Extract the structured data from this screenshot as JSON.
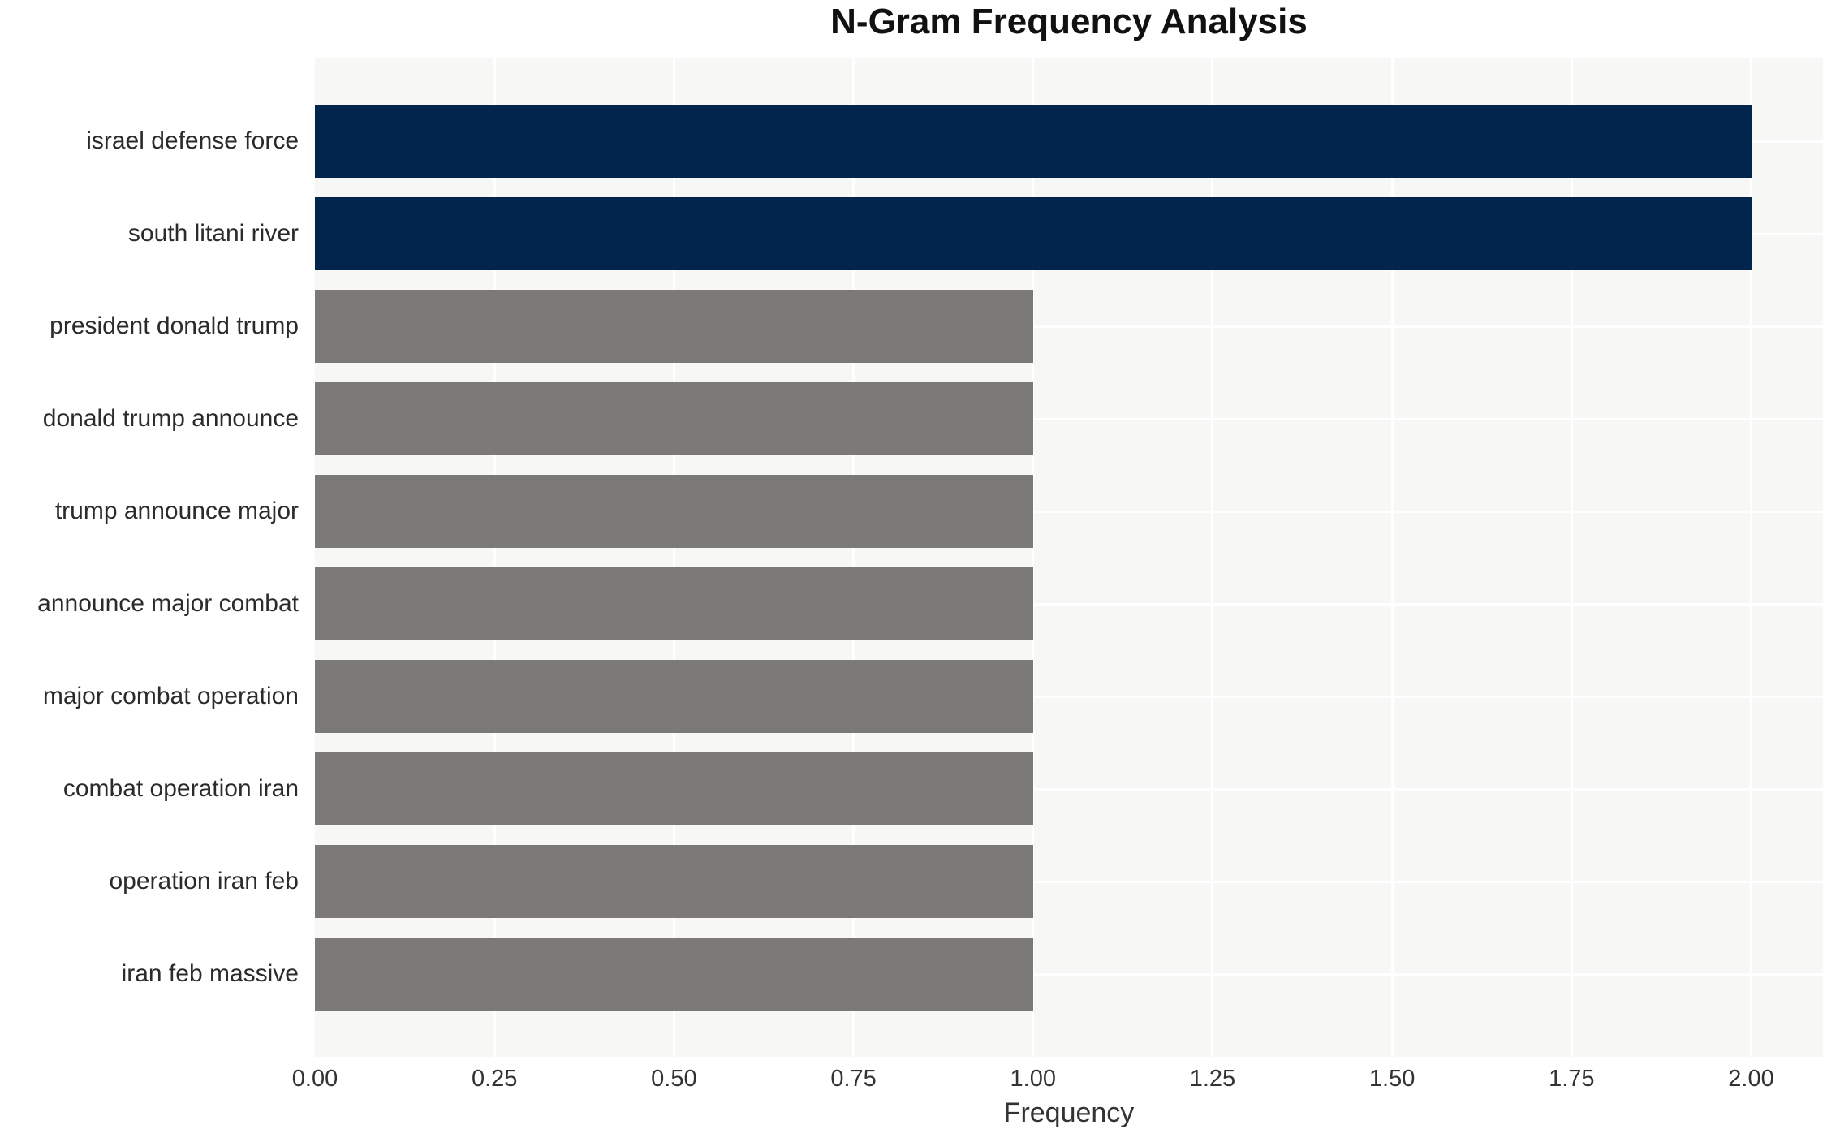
{
  "chart_data": {
    "type": "bar",
    "orientation": "horizontal",
    "title": "N-Gram Frequency Analysis",
    "xlabel": "Frequency",
    "ylabel": "",
    "xlim": [
      0,
      2.1
    ],
    "x_ticks": [
      0.0,
      0.25,
      0.5,
      0.75,
      1.0,
      1.25,
      1.5,
      1.75,
      2.0
    ],
    "x_tick_labels": [
      "0.00",
      "0.25",
      "0.50",
      "0.75",
      "1.00",
      "1.25",
      "1.50",
      "1.75",
      "2.00"
    ],
    "grid": true,
    "legend": "none",
    "categories": [
      "israel defense force",
      "south litani river",
      "president donald trump",
      "donald trump announce",
      "trump announce major",
      "announce major combat",
      "major combat operation",
      "combat operation iran",
      "operation iran feb",
      "iran feb massive"
    ],
    "values": [
      2,
      2,
      1,
      1,
      1,
      1,
      1,
      1,
      1,
      1
    ],
    "bars": [
      {
        "label": "israel defense force",
        "value": 2,
        "color": "#02254d"
      },
      {
        "label": "south litani river",
        "value": 2,
        "color": "#02254d"
      },
      {
        "label": "president donald trump",
        "value": 1,
        "color": "#7b7a77"
      },
      {
        "label": "donald trump announce",
        "value": 1,
        "color": "#7b7a77"
      },
      {
        "label": "trump announce major",
        "value": 1,
        "color": "#7b7a77"
      },
      {
        "label": "announce major combat",
        "value": 1,
        "color": "#7b7a77"
      },
      {
        "label": "major combat operation",
        "value": 1,
        "color": "#7b7a77"
      },
      {
        "label": "combat operation iran",
        "value": 1,
        "color": "#7b7a77"
      },
      {
        "label": "operation iran feb",
        "value": 1,
        "color": "#7b7a77"
      },
      {
        "label": "iran feb massive",
        "value": 1,
        "color": "#7b7a77"
      }
    ],
    "colors": {
      "highlight_bar": "#02254d",
      "default_bar": "#7b7a77",
      "plot_background": "#f7f7f6",
      "gridline": "#ffffff",
      "text": "#2b2b2b"
    }
  }
}
